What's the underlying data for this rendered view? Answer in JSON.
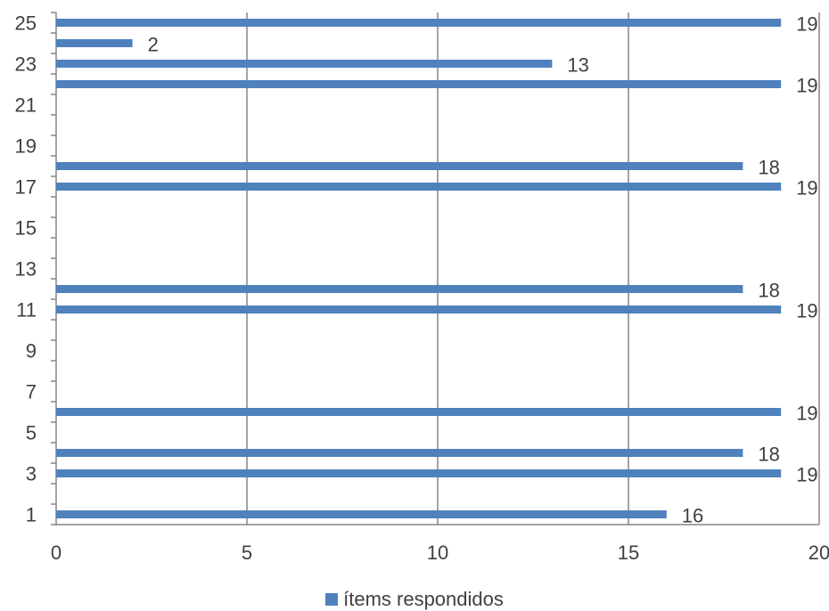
{
  "chart_data": {
    "type": "bar",
    "orientation": "horizontal",
    "title": "",
    "xlabel": "",
    "ylabel": "",
    "xlim": [
      0,
      20
    ],
    "x_ticks": [
      0,
      5,
      10,
      15,
      20
    ],
    "ylim": [
      0,
      25
    ],
    "y_tick_labels": [
      1,
      3,
      5,
      7,
      9,
      11,
      13,
      15,
      17,
      19,
      21,
      23,
      25
    ],
    "grid": "vertical major gridlines",
    "legend_position": "bottom",
    "series": [
      {
        "name": "ítems respondidos",
        "color": "#4F81BD",
        "points": [
          {
            "category": 1,
            "value": 16
          },
          {
            "category": 3,
            "value": 19
          },
          {
            "category": 4,
            "value": 18
          },
          {
            "category": 6,
            "value": 19
          },
          {
            "category": 11,
            "value": 19
          },
          {
            "category": 12,
            "value": 18
          },
          {
            "category": 17,
            "value": 19
          },
          {
            "category": 18,
            "value": 18
          },
          {
            "category": 22,
            "value": 19
          },
          {
            "category": 23,
            "value": 13
          },
          {
            "category": 24,
            "value": 2
          },
          {
            "category": 25,
            "value": 19
          }
        ]
      }
    ]
  }
}
